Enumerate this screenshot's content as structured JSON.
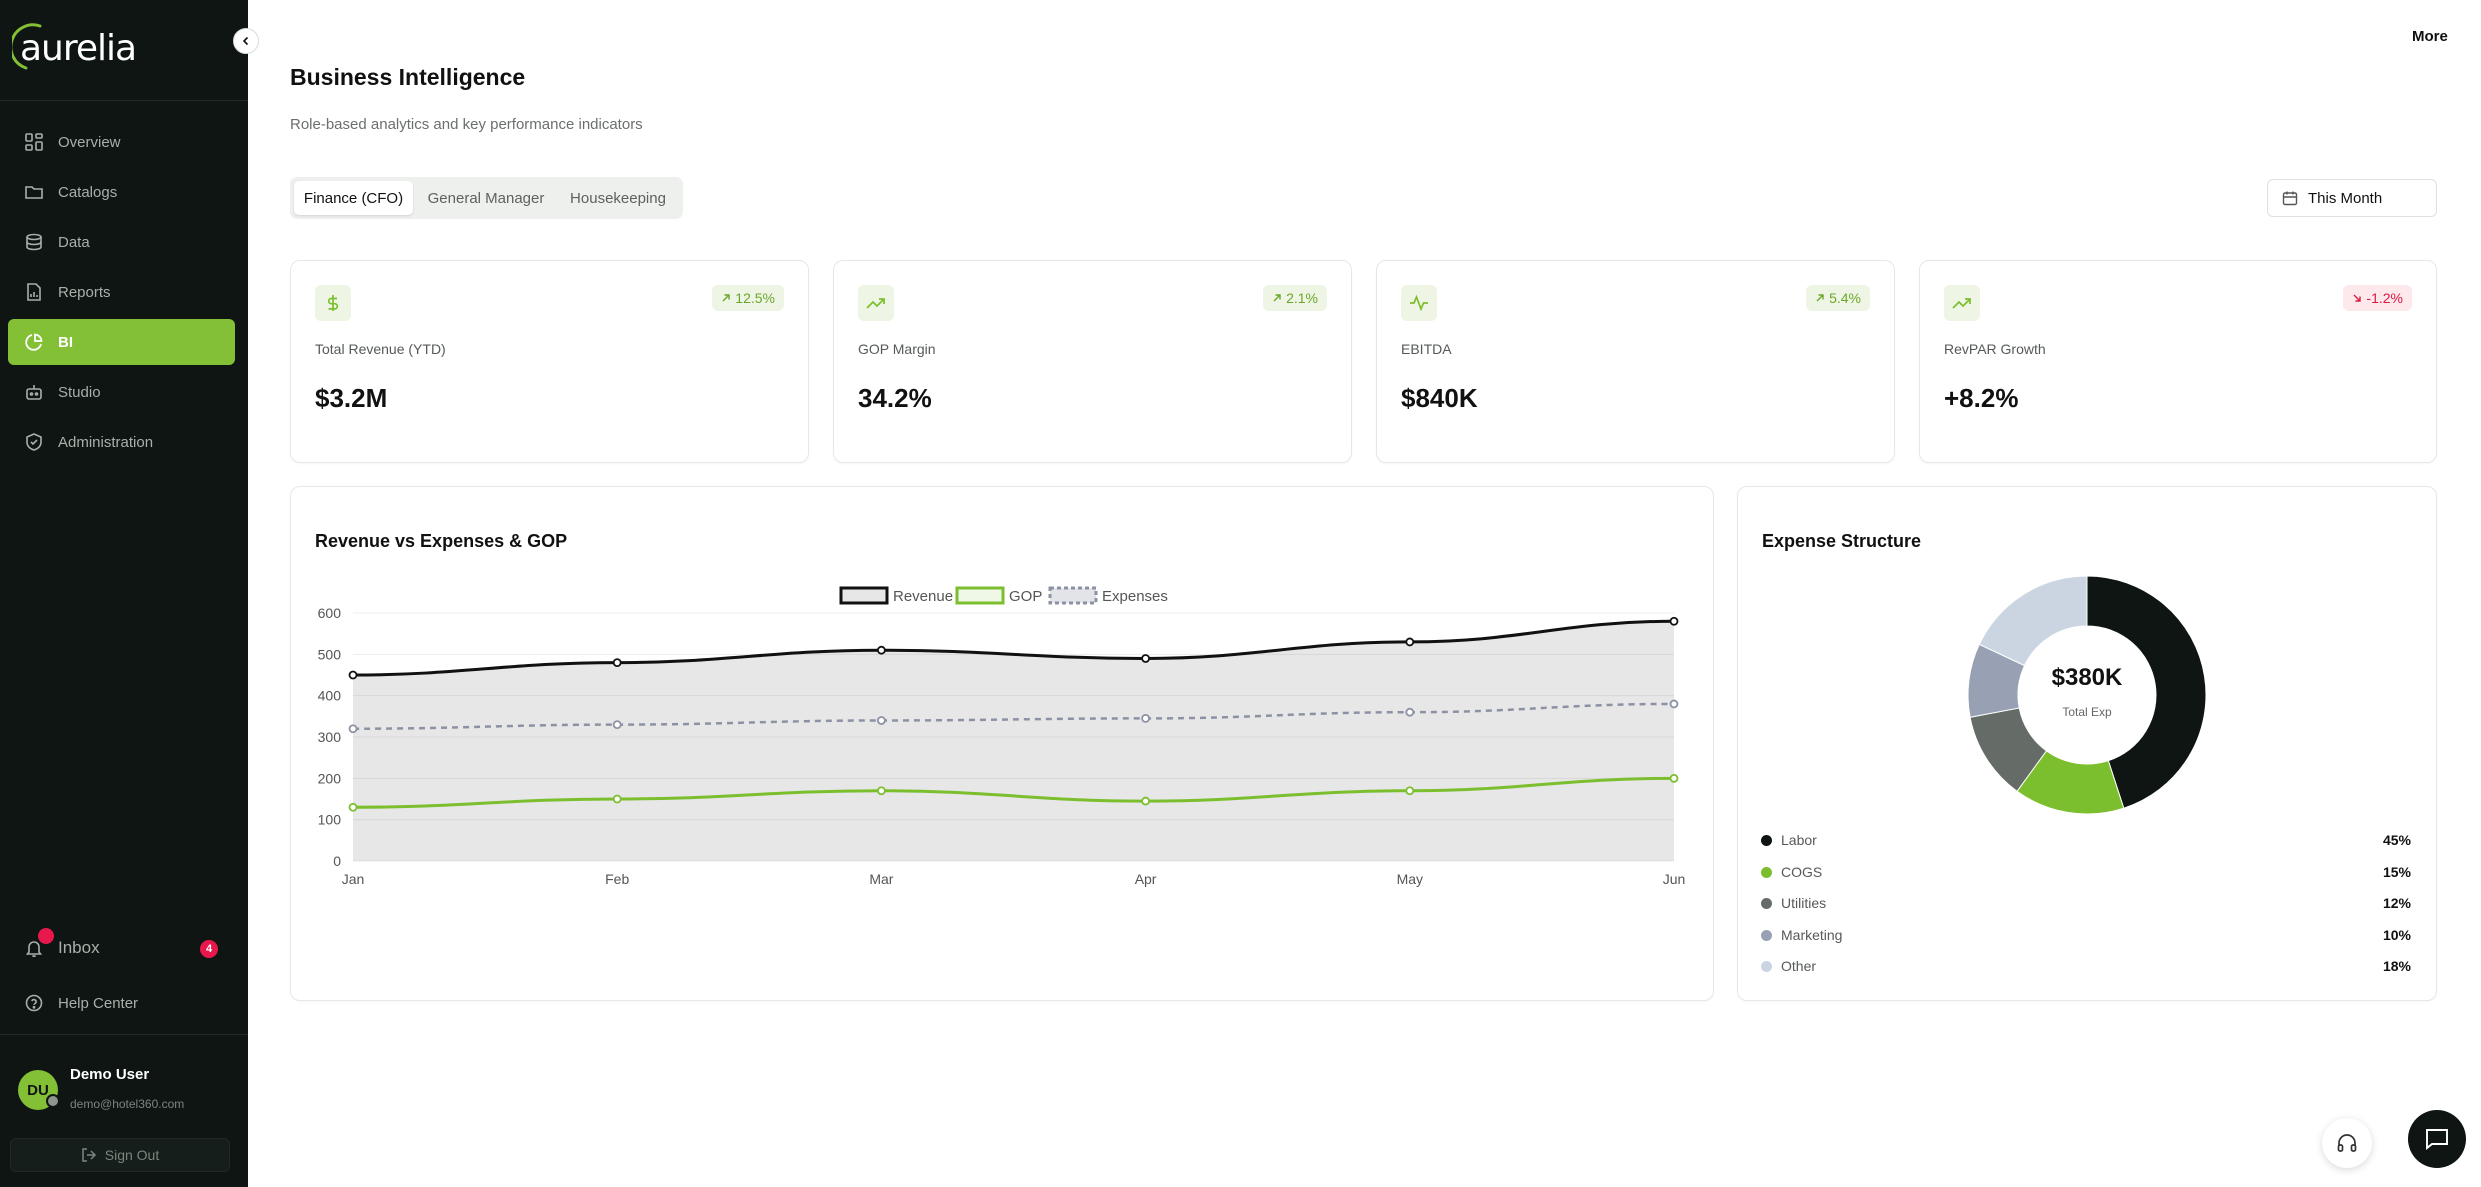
{
  "app": {
    "brand": "aurelia",
    "more_label": "More"
  },
  "sidebar": {
    "items": [
      {
        "label": "Overview",
        "icon": "grid-icon"
      },
      {
        "label": "Catalogs",
        "icon": "folder-icon"
      },
      {
        "label": "Data",
        "icon": "database-icon"
      },
      {
        "label": "Reports",
        "icon": "file-chart-icon"
      },
      {
        "label": "BI",
        "icon": "pie-chart-icon",
        "active": true
      },
      {
        "label": "Studio",
        "icon": "bot-icon"
      },
      {
        "label": "Administration",
        "icon": "shield-check-icon"
      }
    ],
    "inbox": {
      "label": "Inbox",
      "count": "4"
    },
    "help": {
      "label": "Help Center"
    },
    "user": {
      "initials": "DU",
      "name": "Demo User",
      "email": "demo@hotel360.com"
    },
    "signout_label": "Sign Out"
  },
  "page": {
    "title": "Business Intelligence",
    "subtitle": "Role-based analytics and key performance indicators"
  },
  "tabs": [
    {
      "label": "Finance (CFO)",
      "active": true
    },
    {
      "label": "General Manager"
    },
    {
      "label": "Housekeeping"
    }
  ],
  "date_filter": {
    "label": "This Month"
  },
  "kpis": [
    {
      "label": "Total Revenue (YTD)",
      "value": "$3.2M",
      "trend": "12.5%",
      "direction": "up",
      "icon": "dollar-icon"
    },
    {
      "label": "GOP Margin",
      "value": "34.2%",
      "trend": "2.1%",
      "direction": "up",
      "icon": "trending-up-icon"
    },
    {
      "label": "EBITDA",
      "value": "$840K",
      "trend": "5.4%",
      "direction": "up",
      "icon": "activity-icon"
    },
    {
      "label": "RevPAR Growth",
      "value": "+8.2%",
      "trend": "-1.2%",
      "direction": "down",
      "icon": "trending-up-icon"
    }
  ],
  "colors": {
    "accent": "#84c036",
    "sidebar_bg": "#0e1512",
    "revenue": "#111111",
    "gop": "#7cbf2e",
    "expenses": "#8c92a4",
    "danger": "#e0163f"
  },
  "chart_data": [
    {
      "type": "line",
      "title": "Revenue vs Expenses & GOP",
      "categories": [
        "Jan",
        "Feb",
        "Mar",
        "Apr",
        "May",
        "Jun"
      ],
      "series": [
        {
          "name": "Revenue",
          "values": [
            450,
            480,
            510,
            490,
            530,
            580
          ],
          "style": "solid",
          "fill": true,
          "color": "#111111"
        },
        {
          "name": "GOP",
          "values": [
            130,
            150,
            170,
            145,
            170,
            200
          ],
          "style": "solid",
          "color": "#7cbf2e"
        },
        {
          "name": "Expenses",
          "values": [
            320,
            330,
            340,
            345,
            360,
            380
          ],
          "style": "dashed",
          "color": "#8c92a4"
        }
      ],
      "ylim": [
        0,
        600
      ],
      "yticks": [
        0,
        100,
        200,
        300,
        400,
        500,
        600
      ],
      "grid": true,
      "legend": "top-center"
    },
    {
      "type": "pie",
      "title": "Expense Structure",
      "center_value": "$380K",
      "center_label": "Total Exp",
      "slices": [
        {
          "label": "Labor",
          "value": 45,
          "pct_label": "45%",
          "color": "#0f1512"
        },
        {
          "label": "COGS",
          "value": 15,
          "pct_label": "15%",
          "color": "#7cbf2e"
        },
        {
          "label": "Utilities",
          "value": 12,
          "pct_label": "12%",
          "color": "#656b67"
        },
        {
          "label": "Marketing",
          "value": 10,
          "pct_label": "10%",
          "color": "#98a1b4"
        },
        {
          "label": "Other",
          "value": 18,
          "pct_label": "18%",
          "color": "#cbd5e1"
        }
      ]
    }
  ]
}
